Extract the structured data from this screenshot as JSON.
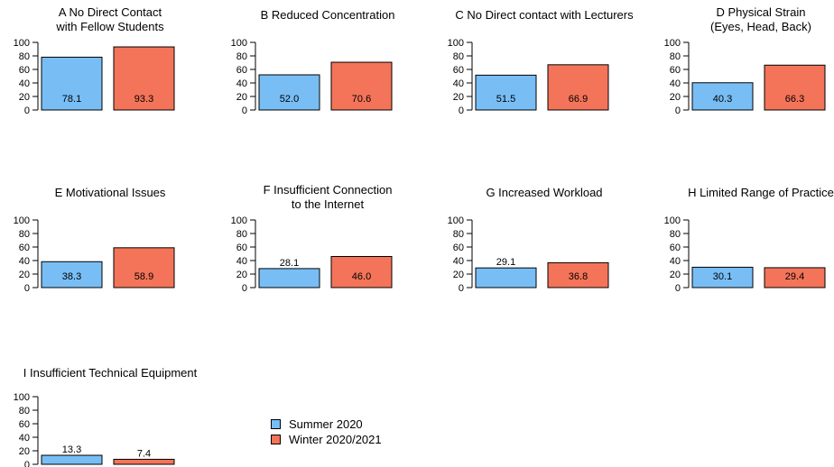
{
  "colors": {
    "summer": "#78BEF5",
    "winter": "#F47459"
  },
  "legend": [
    {
      "label": "Summer 2020",
      "color": "#78BEF5"
    },
    {
      "label": "Winter 2020/2021",
      "color": "#F47459"
    }
  ],
  "chart_data": [
    {
      "type": "bar",
      "title": [
        "A No Direct Contact",
        "with Fellow Students"
      ],
      "categories": [
        "Summer 2020",
        "Winter 2020/2021"
      ],
      "values": [
        78.1,
        93.3
      ],
      "ylim": [
        0,
        100
      ],
      "yticks": [
        0,
        20,
        40,
        60,
        80,
        100
      ]
    },
    {
      "type": "bar",
      "title": [
        "B Reduced Concentration"
      ],
      "categories": [
        "Summer 2020",
        "Winter 2020/2021"
      ],
      "values": [
        52.0,
        70.6
      ],
      "ylim": [
        0,
        100
      ],
      "yticks": [
        0,
        20,
        40,
        60,
        80,
        100
      ]
    },
    {
      "type": "bar",
      "title": [
        "C No Direct contact with Lecturers"
      ],
      "categories": [
        "Summer 2020",
        "Winter 2020/2021"
      ],
      "values": [
        51.5,
        66.9
      ],
      "ylim": [
        0,
        100
      ],
      "yticks": [
        0,
        20,
        40,
        60,
        80,
        100
      ]
    },
    {
      "type": "bar",
      "title": [
        "D Physical Strain",
        "(Eyes, Head, Back)"
      ],
      "categories": [
        "Summer 2020",
        "Winter 2020/2021"
      ],
      "values": [
        40.3,
        66.3
      ],
      "ylim": [
        0,
        100
      ],
      "yticks": [
        0,
        20,
        40,
        60,
        80,
        100
      ]
    },
    {
      "type": "bar",
      "title": [
        "E Motivational Issues"
      ],
      "categories": [
        "Summer 2020",
        "Winter 2020/2021"
      ],
      "values": [
        38.3,
        58.9
      ],
      "ylim": [
        0,
        100
      ],
      "yticks": [
        0,
        20,
        40,
        60,
        80,
        100
      ]
    },
    {
      "type": "bar",
      "title": [
        "F Insufficient Connection",
        "to the Internet"
      ],
      "categories": [
        "Summer 2020",
        "Winter 2020/2021"
      ],
      "values": [
        28.1,
        46.0
      ],
      "ylim": [
        0,
        100
      ],
      "yticks": [
        0,
        20,
        40,
        60,
        80,
        100
      ]
    },
    {
      "type": "bar",
      "title": [
        "G Increased Workload"
      ],
      "categories": [
        "Summer 2020",
        "Winter 2020/2021"
      ],
      "values": [
        29.1,
        36.8
      ],
      "ylim": [
        0,
        100
      ],
      "yticks": [
        0,
        20,
        40,
        60,
        80,
        100
      ]
    },
    {
      "type": "bar",
      "title": [
        "H Limited Range of Practice"
      ],
      "categories": [
        "Summer 2020",
        "Winter 2020/2021"
      ],
      "values": [
        30.1,
        29.4
      ],
      "ylim": [
        0,
        100
      ],
      "yticks": [
        0,
        20,
        40,
        60,
        80,
        100
      ]
    },
    {
      "type": "bar",
      "title": [
        "I Insufficient Technical Equipment"
      ],
      "categories": [
        "Summer 2020",
        "Winter 2020/2021"
      ],
      "values": [
        13.3,
        7.4
      ],
      "ylim": [
        0,
        100
      ],
      "yticks": [
        0,
        20,
        40,
        60,
        80,
        100
      ]
    }
  ]
}
